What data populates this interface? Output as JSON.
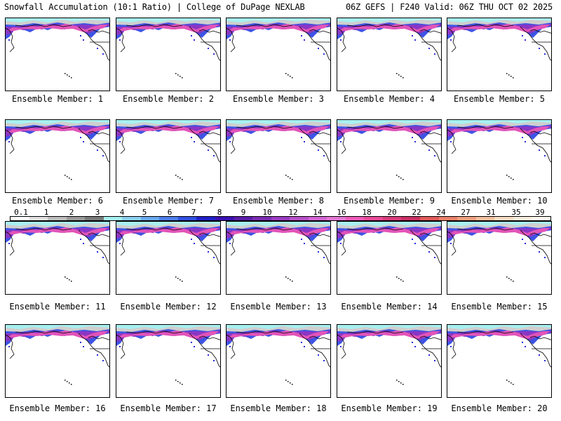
{
  "header": {
    "left": "Snowfall Accumulation (10:1 Ratio) | College of DuPage NEXLAB",
    "right": "06Z GEFS | F240 Valid: 06Z THU OCT 02 2025"
  },
  "members": [
    {
      "label": "Ensemble Member: 1"
    },
    {
      "label": "Ensemble Member: 2"
    },
    {
      "label": "Ensemble Member: 3"
    },
    {
      "label": "Ensemble Member: 4"
    },
    {
      "label": "Ensemble Member: 5"
    },
    {
      "label": "Ensemble Member: 6"
    },
    {
      "label": "Ensemble Member: 7"
    },
    {
      "label": "Ensemble Member: 8"
    },
    {
      "label": "Ensemble Member: 9"
    },
    {
      "label": "Ensemble Member: 10"
    },
    {
      "label": "Ensemble Member: 11"
    },
    {
      "label": "Ensemble Member: 12"
    },
    {
      "label": "Ensemble Member: 13"
    },
    {
      "label": "Ensemble Member: 14"
    },
    {
      "label": "Ensemble Member: 15"
    },
    {
      "label": "Ensemble Member: 16"
    },
    {
      "label": "Ensemble Member: 17"
    },
    {
      "label": "Ensemble Member: 18"
    },
    {
      "label": "Ensemble Member: 19"
    },
    {
      "label": "Ensemble Member: 20"
    }
  ],
  "legend": {
    "labels": [
      "0.1",
      "1",
      "2",
      "3",
      "4",
      "5",
      "6",
      "7",
      "8",
      "9",
      "10",
      "12",
      "14",
      "16",
      "18",
      "20",
      "22",
      "24",
      "27",
      "31",
      "35",
      "39"
    ],
    "colors": [
      "#ffffff",
      "#e0e0e0",
      "#bdbdbd",
      "#9a9a9a",
      "#7a7a7a",
      "#a8f0f0",
      "#8ccef0",
      "#6aa8ee",
      "#4d7eea",
      "#3150e0",
      "#2020c8",
      "#3a10b0",
      "#5a1ca8",
      "#7a2cb0",
      "#9a3cc0",
      "#b850c8",
      "#d264d2",
      "#e478d4",
      "#ee5ab8",
      "#e84a98",
      "#d83c7c",
      "#c83064",
      "#e05a5a",
      "#e8806a",
      "#f0a080",
      "#f4c0a0",
      "#f8dcc4",
      "#fbeedd",
      "#fff8ee"
    ]
  }
}
